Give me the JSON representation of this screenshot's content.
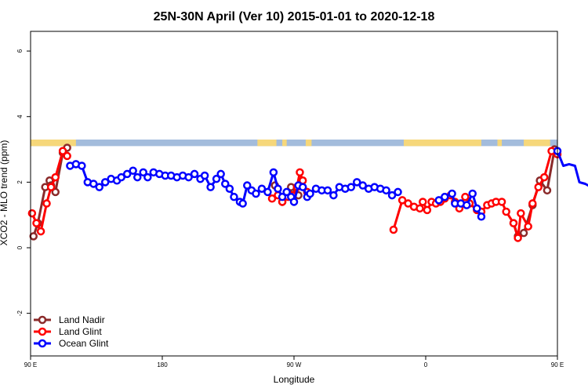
{
  "chart_data": {
    "type": "line",
    "title": "25N-30N April (Ver 10)   2015-01-01 to 2020-12-18",
    "xlabel": "Longitude",
    "ylabel": "XCO2 - MLO trend (ppm)",
    "xlim": [
      90,
      450
    ],
    "ylim": [
      -3.3,
      6.6
    ],
    "x_ticks": [
      {
        "value": 90,
        "label": "90 E"
      },
      {
        "value": 180,
        "label": "180"
      },
      {
        "value": 270,
        "label": "90 W"
      },
      {
        "value": 360,
        "label": "0"
      },
      {
        "value": 450,
        "label": "90 E"
      },
      {
        "value": 540,
        "label": "180"
      }
    ],
    "y_ticks": [
      {
        "value": -2,
        "label": "-2"
      },
      {
        "value": 0,
        "label": "0"
      },
      {
        "value": 2,
        "label": "2"
      },
      {
        "value": 4,
        "label": "4"
      },
      {
        "value": 6,
        "label": "6"
      }
    ],
    "legend_position": "bottom-left",
    "land_ocean_strip": {
      "y_range": [
        3.1,
        3.3
      ],
      "land_color": "#f6d77a",
      "ocean_color": "#a3bcdc",
      "land_segments": [
        [
          90,
          121
        ],
        [
          245,
          258
        ],
        [
          262,
          265
        ],
        [
          278,
          282
        ],
        [
          345,
          398
        ],
        [
          409,
          412
        ],
        [
          427,
          445
        ]
      ]
    },
    "series": [
      {
        "name": "Land Nadir",
        "color": "#8b2a2a",
        "points": [
          [
            92,
            0.35
          ],
          [
            95,
            0.75
          ],
          [
            100,
            1.85
          ],
          [
            103,
            2.05
          ],
          [
            104,
            1.9
          ],
          [
            107,
            1.7
          ],
          [
            112,
            2.9
          ],
          [
            115,
            3.05
          ],
          [
            257,
            1.9
          ],
          [
            262,
            1.4
          ],
          [
            266,
            1.7
          ],
          [
            268,
            1.85
          ],
          [
            273,
            1.6
          ],
          [
            420,
            0.75
          ],
          [
            423,
            0.35
          ],
          [
            427,
            0.45
          ],
          [
            433,
            1.3
          ],
          [
            438,
            2.05
          ],
          [
            443,
            1.75
          ],
          [
            448,
            3.0
          ],
          [
            451,
            2.95
          ]
        ]
      },
      {
        "name": "Land Glint",
        "color": "#ff0000",
        "points": [
          [
            91,
            1.05
          ],
          [
            94,
            0.75
          ],
          [
            97,
            0.5
          ],
          [
            101,
            1.35
          ],
          [
            104,
            1.85
          ],
          [
            107,
            2.15
          ],
          [
            112,
            2.95
          ],
          [
            115,
            2.8
          ],
          [
            255,
            1.5
          ],
          [
            259,
            1.6
          ],
          [
            262,
            1.4
          ],
          [
            266,
            1.55
          ],
          [
            269,
            1.6
          ],
          [
            272,
            1.85
          ],
          [
            274,
            2.3
          ],
          [
            276,
            2.05
          ],
          [
            279,
            1.7
          ],
          [
            338,
            0.55
          ],
          [
            344,
            1.45
          ],
          [
            348,
            1.35
          ],
          [
            352,
            1.25
          ],
          [
            356,
            1.2
          ],
          [
            358,
            1.4
          ],
          [
            361,
            1.15
          ],
          [
            364,
            1.4
          ],
          [
            367,
            1.35
          ],
          [
            370,
            1.4
          ],
          [
            373,
            1.5
          ],
          [
            377,
            1.6
          ],
          [
            380,
            1.4
          ],
          [
            383,
            1.2
          ],
          [
            387,
            1.55
          ],
          [
            390,
            1.35
          ],
          [
            395,
            1.15
          ],
          [
            398,
            1.1
          ],
          [
            402,
            1.3
          ],
          [
            405,
            1.35
          ],
          [
            408,
            1.4
          ],
          [
            412,
            1.4
          ],
          [
            415,
            1.1
          ],
          [
            420,
            0.75
          ],
          [
            423,
            0.3
          ],
          [
            425,
            1.05
          ],
          [
            430,
            0.65
          ],
          [
            433,
            1.35
          ],
          [
            437,
            1.85
          ],
          [
            441,
            2.15
          ],
          [
            446,
            2.95
          ],
          [
            450,
            2.85
          ]
        ]
      },
      {
        "name": "Ocean Glint",
        "color": "#0000ff",
        "points": [
          [
            117,
            2.5
          ],
          [
            121,
            2.55
          ],
          [
            125,
            2.5
          ],
          [
            129,
            2.0
          ],
          [
            133,
            1.95
          ],
          [
            137,
            1.85
          ],
          [
            141,
            2.0
          ],
          [
            145,
            2.1
          ],
          [
            149,
            2.05
          ],
          [
            152,
            2.15
          ],
          [
            156,
            2.25
          ],
          [
            160,
            2.35
          ],
          [
            163,
            2.15
          ],
          [
            167,
            2.3
          ],
          [
            170,
            2.15
          ],
          [
            174,
            2.3
          ],
          [
            178,
            2.25
          ],
          [
            182,
            2.2
          ],
          [
            186,
            2.2
          ],
          [
            190,
            2.15
          ],
          [
            194,
            2.2
          ],
          [
            198,
            2.15
          ],
          [
            202,
            2.25
          ],
          [
            206,
            2.1
          ],
          [
            209,
            2.2
          ],
          [
            213,
            1.85
          ],
          [
            217,
            2.1
          ],
          [
            220,
            2.25
          ],
          [
            223,
            1.95
          ],
          [
            226,
            1.8
          ],
          [
            229,
            1.55
          ],
          [
            233,
            1.4
          ],
          [
            235,
            1.35
          ],
          [
            238,
            1.9
          ],
          [
            241,
            1.75
          ],
          [
            244,
            1.65
          ],
          [
            248,
            1.8
          ],
          [
            252,
            1.7
          ],
          [
            256,
            2.3
          ],
          [
            259,
            1.8
          ],
          [
            262,
            1.55
          ],
          [
            265,
            1.7
          ],
          [
            268,
            1.55
          ],
          [
            270,
            1.4
          ],
          [
            273,
            1.9
          ],
          [
            276,
            1.85
          ],
          [
            279,
            1.55
          ],
          [
            281,
            1.65
          ],
          [
            285,
            1.8
          ],
          [
            289,
            1.75
          ],
          [
            293,
            1.75
          ],
          [
            297,
            1.6
          ],
          [
            301,
            1.85
          ],
          [
            305,
            1.8
          ],
          [
            309,
            1.85
          ],
          [
            313,
            2.0
          ],
          [
            317,
            1.9
          ],
          [
            321,
            1.8
          ],
          [
            325,
            1.85
          ],
          [
            329,
            1.8
          ],
          [
            333,
            1.75
          ],
          [
            337,
            1.6
          ],
          [
            341,
            1.7
          ],
          [
            369,
            1.45
          ],
          [
            373,
            1.55
          ],
          [
            378,
            1.65
          ],
          [
            380,
            1.35
          ],
          [
            384,
            1.35
          ],
          [
            388,
            1.3
          ],
          [
            392,
            1.65
          ],
          [
            395,
            1.2
          ],
          [
            398,
            0.95
          ],
          [
            450,
            2.95
          ],
          [
            454,
            2.5
          ],
          [
            458,
            2.55
          ],
          [
            462,
            2.5
          ],
          [
            465,
            2.0
          ],
          [
            469,
            1.95
          ],
          [
            473,
            1.85
          ],
          [
            477,
            2.0
          ],
          [
            481,
            2.05
          ],
          [
            485,
            2.0
          ],
          [
            489,
            2.1
          ],
          [
            493,
            2.25
          ],
          [
            497,
            2.35
          ]
        ]
      }
    ]
  }
}
